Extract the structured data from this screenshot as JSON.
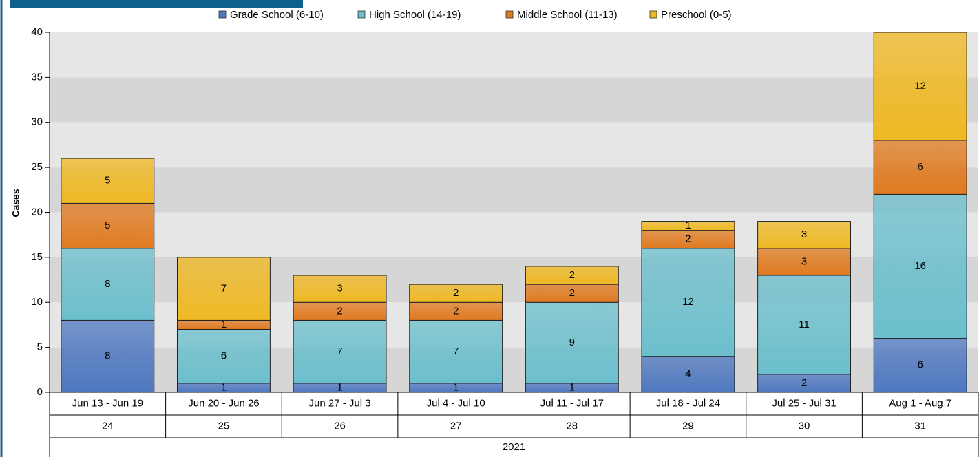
{
  "chart_data": {
    "type": "stacked_bar",
    "y_label": "Cases",
    "categories": [
      "Jun 13 - Jun 19",
      "Jun 20 - Jun 26",
      "Jun 27 - Jul 3",
      "Jul 4 - Jul 10",
      "Jul 11 - Jul 17",
      "Jul 18 - Jul 24",
      "Jul 25 - Jul 31",
      "Aug 1 - Aug 7"
    ],
    "weeks": [
      "24",
      "25",
      "26",
      "27",
      "28",
      "29",
      "30",
      "31"
    ],
    "year": "2021",
    "series": [
      {
        "name": "Grade School (6-10)",
        "color": "#4f78c0",
        "values": [
          8,
          1,
          1,
          1,
          1,
          4,
          2,
          6
        ]
      },
      {
        "name": "High School (14-19)",
        "color": "#6cbfcd",
        "values": [
          8,
          6,
          7,
          7,
          9,
          12,
          11,
          16
        ]
      },
      {
        "name": "Middle School (11-13)",
        "color": "#e07a20",
        "values": [
          5,
          1,
          2,
          2,
          2,
          2,
          3,
          6
        ]
      },
      {
        "name": "Preschool (0-5)",
        "color": "#efb923",
        "values": [
          5,
          7,
          3,
          2,
          2,
          1,
          3,
          12
        ]
      }
    ],
    "ylim": [
      0,
      40
    ],
    "yticks": [
      0,
      5,
      10,
      15,
      20,
      25,
      30,
      35,
      40
    ],
    "grid": true
  }
}
